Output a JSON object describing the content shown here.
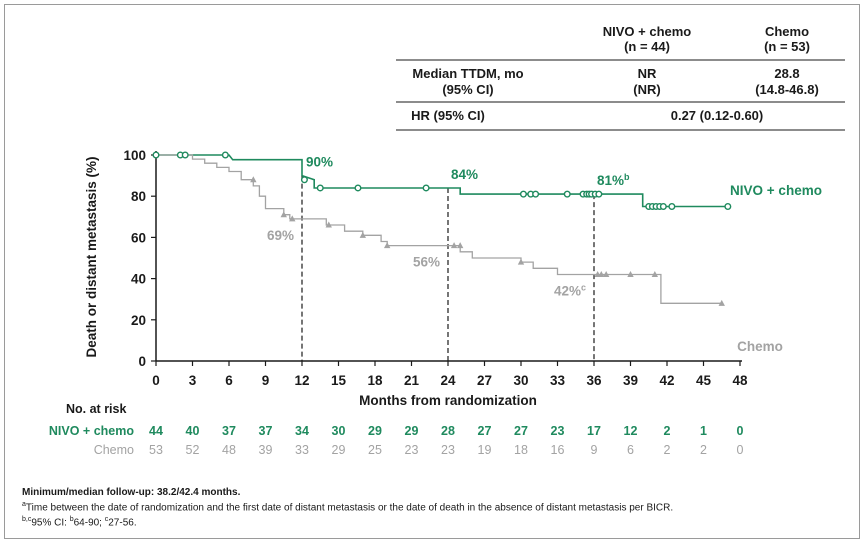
{
  "table": {
    "col1_header_line1": "NIVO + chemo",
    "col1_header_line2": "(n = 44)",
    "col2_header_line1": "Chemo",
    "col2_header_line2": "(n = 53)",
    "row1_label_line1": "Median TTDM, mo",
    "row1_label_line2": "(95% CI)",
    "row1_col1_line1": "NR",
    "row1_col1_line2": "(NR)",
    "row1_col2_line1": "28.8",
    "row1_col2_line2": "(14.8-46.8)",
    "row2_label": "HR (95% CI)",
    "row2_value": "0.27 (0.12-0.60)"
  },
  "at_risk": {
    "title": "No. at risk",
    "nivo_label": "NIVO + chemo",
    "chemo_label": "Chemo",
    "nivo_counts": [
      44,
      40,
      37,
      37,
      34,
      30,
      29,
      29,
      28,
      27,
      27,
      23,
      17,
      12,
      2,
      1,
      0
    ],
    "chemo_counts": [
      53,
      52,
      48,
      39,
      33,
      29,
      25,
      23,
      23,
      19,
      18,
      16,
      9,
      6,
      2,
      2,
      0
    ]
  },
  "footnotes": {
    "line1": "Minimum/median follow-up: 38.2/42.4 months.",
    "line2_sup": "a",
    "line2": "Time between the date of randomization and the first date of distant metastasis or the date of death in the absence of distant metastasis per BICR.",
    "line3_sup": "b,c",
    "line3": "95% CI: ",
    "line3_b_sup": "b",
    "line3_b": "64-90; ",
    "line3_c_sup": "c",
    "line3_c": "27-56."
  },
  "colors": {
    "nivo": "#1f8a5e",
    "chemo": "#a3a3a3",
    "axis": "#1a1a1a",
    "text": "#1a1a1a"
  },
  "chart_data": {
    "type": "line",
    "title": "",
    "xlabel": "Months from randomization",
    "ylabel": "Death or distant metastasis (%)",
    "xlim": [
      0,
      48
    ],
    "ylim": [
      0,
      100
    ],
    "xticks": [
      0,
      3,
      6,
      9,
      12,
      15,
      18,
      21,
      24,
      27,
      30,
      33,
      36,
      39,
      42,
      45,
      48
    ],
    "yticks": [
      0,
      20,
      40,
      60,
      80,
      100
    ],
    "reference_times": [
      12,
      24,
      36
    ],
    "series": [
      {
        "name": "NIVO + chemo",
        "label": "NIVO + chemo",
        "color": "#1f8a5e",
        "steps": [
          [
            0,
            100
          ],
          [
            6,
            100
          ],
          [
            6.3,
            97.7
          ],
          [
            12,
            97.7
          ],
          [
            12,
            90
          ],
          [
            13,
            88
          ],
          [
            13,
            84
          ],
          [
            25,
            84
          ],
          [
            25,
            81
          ],
          [
            40,
            81
          ],
          [
            40,
            75
          ],
          [
            47,
            75
          ]
        ],
        "censored": [
          [
            0,
            100
          ],
          [
            2,
            100
          ],
          [
            2.4,
            100
          ],
          [
            5.7,
            100
          ],
          [
            12.2,
            88
          ],
          [
            13.5,
            84
          ],
          [
            16.6,
            84
          ],
          [
            22.2,
            84
          ],
          [
            30.2,
            81
          ],
          [
            30.8,
            81
          ],
          [
            31.2,
            81
          ],
          [
            33.8,
            81
          ],
          [
            35.1,
            81
          ],
          [
            35.4,
            81
          ],
          [
            35.6,
            81
          ],
          [
            35.8,
            81
          ],
          [
            36.1,
            81
          ],
          [
            36.4,
            81
          ],
          [
            40.5,
            75
          ],
          [
            40.8,
            75
          ],
          [
            41.1,
            75
          ],
          [
            41.4,
            75
          ],
          [
            41.7,
            75
          ],
          [
            42.4,
            75
          ],
          [
            47,
            75
          ]
        ],
        "annotations": [
          {
            "time": 12,
            "value": 90,
            "text": "90%"
          },
          {
            "time": 24,
            "value": 84,
            "text": "84%"
          },
          {
            "time": 36,
            "value": 81,
            "text": "81%",
            "sup": "b"
          }
        ]
      },
      {
        "name": "Chemo",
        "label": "Chemo",
        "color": "#a3a3a3",
        "steps": [
          [
            0,
            100
          ],
          [
            3,
            100
          ],
          [
            3,
            98
          ],
          [
            4,
            98
          ],
          [
            4,
            96
          ],
          [
            5,
            96
          ],
          [
            5,
            94
          ],
          [
            6,
            94
          ],
          [
            6,
            92
          ],
          [
            7,
            92
          ],
          [
            7,
            88
          ],
          [
            8,
            88
          ],
          [
            8,
            85
          ],
          [
            8.5,
            85
          ],
          [
            8.5,
            80
          ],
          [
            9,
            80
          ],
          [
            9,
            74
          ],
          [
            10.5,
            74
          ],
          [
            10.5,
            71
          ],
          [
            11,
            71
          ],
          [
            11,
            69
          ],
          [
            14,
            69
          ],
          [
            14,
            66
          ],
          [
            15.5,
            66
          ],
          [
            15.5,
            63
          ],
          [
            17,
            63
          ],
          [
            17,
            61
          ],
          [
            18.5,
            61
          ],
          [
            18.5,
            58
          ],
          [
            19,
            58
          ],
          [
            19,
            56
          ],
          [
            25,
            56
          ],
          [
            25,
            53
          ],
          [
            26,
            53
          ],
          [
            26,
            50
          ],
          [
            30,
            50
          ],
          [
            30,
            48
          ],
          [
            31,
            48
          ],
          [
            31,
            45
          ],
          [
            33,
            45
          ],
          [
            33,
            42
          ],
          [
            41.5,
            42
          ],
          [
            41.5,
            28
          ],
          [
            46.5,
            28
          ]
        ],
        "censored": [
          [
            8,
            88
          ],
          [
            10.5,
            71
          ],
          [
            11.2,
            69
          ],
          [
            14.2,
            66
          ],
          [
            17,
            61
          ],
          [
            19,
            56
          ],
          [
            24.5,
            56
          ],
          [
            25,
            56
          ],
          [
            30,
            48
          ],
          [
            36.3,
            42
          ],
          [
            36.6,
            42
          ],
          [
            37,
            42
          ],
          [
            39,
            42
          ],
          [
            41,
            42
          ],
          [
            46.5,
            28
          ]
        ],
        "annotations": [
          {
            "time": 12,
            "value": 69,
            "text": "69%"
          },
          {
            "time": 24,
            "value": 56,
            "text": "56%"
          },
          {
            "time": 36,
            "value": 42,
            "text": "42%",
            "sup": "c"
          }
        ]
      }
    ]
  }
}
